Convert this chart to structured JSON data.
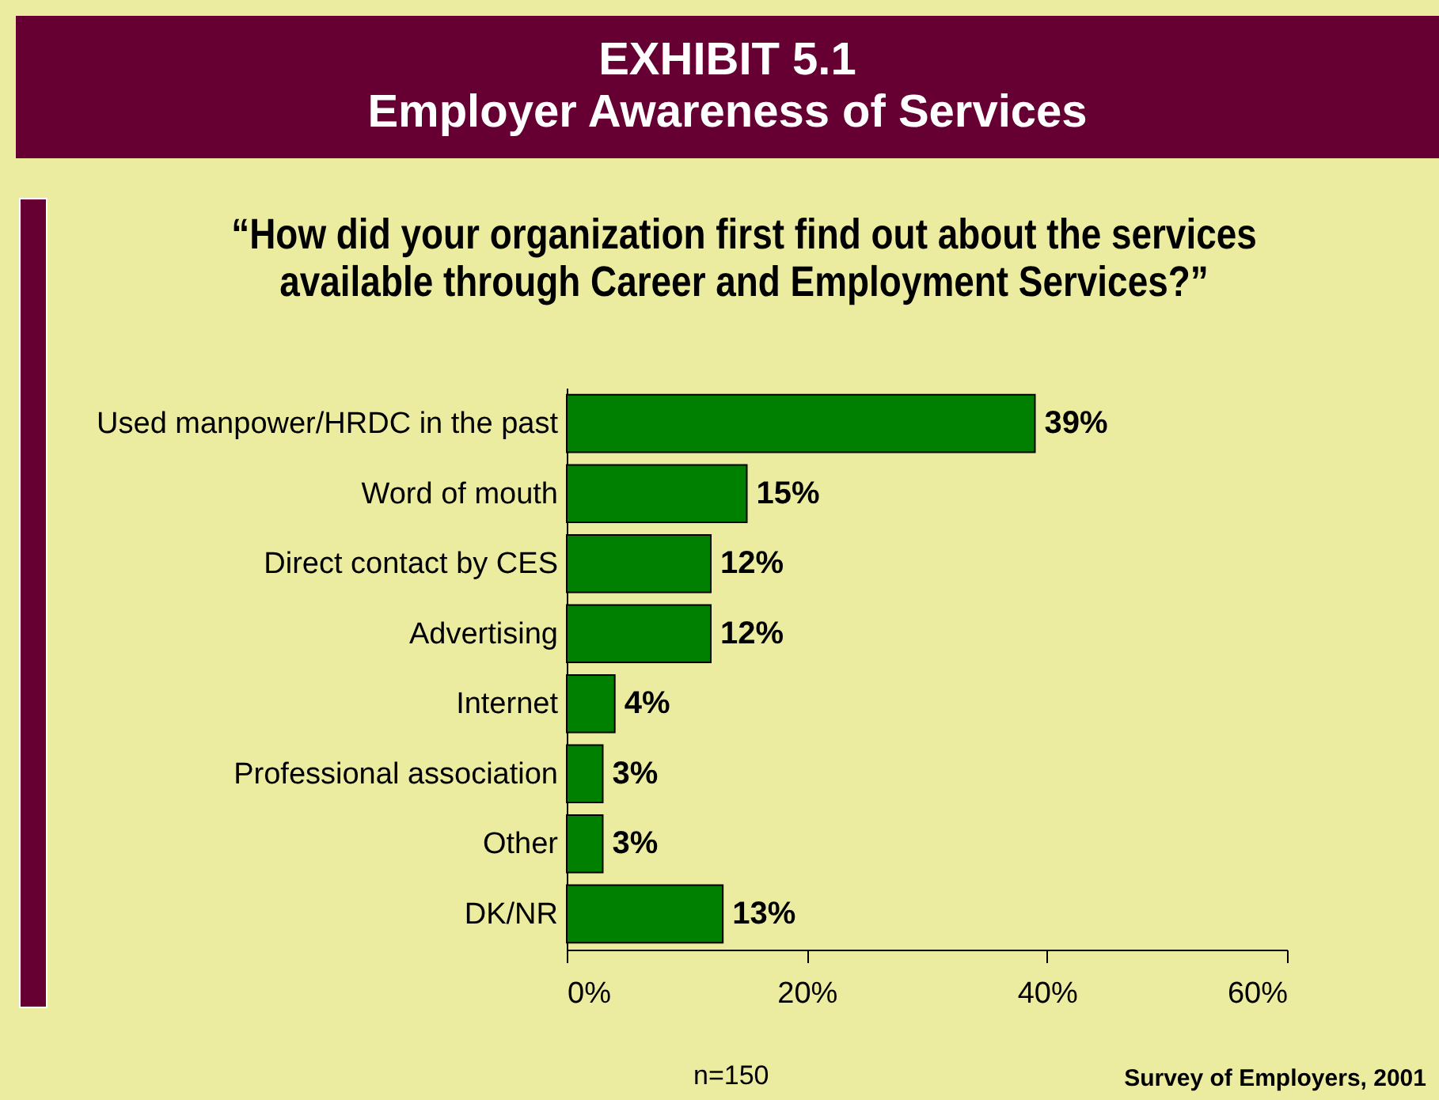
{
  "chart_data": {
    "type": "bar",
    "orientation": "horizontal",
    "title": "EXHIBIT 5.1\nEmployer Awareness of Services",
    "subtitle": "“How did your organization first find out about the services\navailable through Career and Employment Services?”",
    "categories": [
      "Used manpower/HRDC in the past",
      "Word of mouth",
      "Direct contact by CES",
      "Advertising",
      "Internet",
      "Professional association",
      "Other",
      "DK/NR"
    ],
    "values": [
      39,
      15,
      12,
      12,
      4,
      3,
      3,
      13
    ],
    "value_labels": [
      "39%",
      "15%",
      "12%",
      "12%",
      "4%",
      "3%",
      "3%",
      "13%"
    ],
    "color": "#008000",
    "xlim": [
      0,
      60
    ],
    "xticks": [
      {
        "value": 0,
        "label": "0%"
      },
      {
        "value": 20,
        "label": "20%"
      },
      {
        "value": 40,
        "label": "40%"
      },
      {
        "value": 60,
        "label": "60%"
      }
    ],
    "grid": false,
    "annotations": [
      "n=150",
      "Survey of Employers, 2001"
    ]
  }
}
